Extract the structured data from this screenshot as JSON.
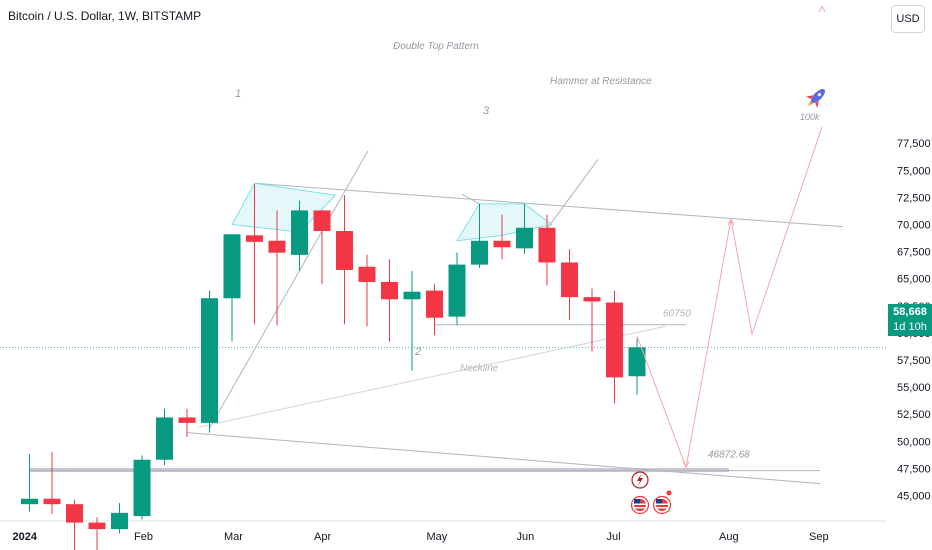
{
  "header": {
    "title": "Bitcoin / U.S. Dollar, 1W, BITSTAMP",
    "currency_button": "USD"
  },
  "price_badge": {
    "price": "58,668",
    "countdown": "1d 10h",
    "color": "#089981"
  },
  "colors": {
    "up": "#089981",
    "down": "#f23645",
    "pattern_fill": "#b2ebf2",
    "annotation_line": "#b2b5be",
    "projection": "#f7a6b0"
  },
  "annotations": {
    "pattern_title": "Double Top Pattern",
    "hammer": "Hammer at Resistance",
    "neckline": "Neckline",
    "peak1": "1",
    "trough": "2",
    "peak2": "3",
    "level_60750": "60750",
    "level_46872": "46872.68",
    "target": "100k"
  },
  "chart_data": {
    "type": "candlestick",
    "title": "Bitcoin / U.S. Dollar, 1W, BITSTAMP",
    "currency": "USD",
    "y_ticks": [
      45000,
      47500,
      50000,
      52500,
      55000,
      57500,
      60000,
      62500,
      65000,
      67500,
      70000,
      72500,
      75000,
      77500
    ],
    "y_tick_labels": [
      "45,000",
      "47,500",
      "50,000",
      "52,500",
      "55,000",
      "57,500",
      "60,000",
      "62,500",
      "65,000",
      "67,500",
      "70,000",
      "72,500",
      "75,000",
      "77,500"
    ],
    "x_labels": [
      {
        "label": "2024",
        "index": 0
      },
      {
        "label": "Feb",
        "index": 5
      },
      {
        "label": "Mar",
        "index": 9
      },
      {
        "label": "Apr",
        "index": 13
      },
      {
        "label": "May",
        "index": 18
      },
      {
        "label": "Jun",
        "index": 22
      },
      {
        "label": "Jul",
        "index": 26
      },
      {
        "label": "Aug",
        "index": 31
      },
      {
        "label": "Sep",
        "index": 35
      }
    ],
    "ylim": [
      43500,
      79500
    ],
    "last_price": 58668,
    "candles": [
      {
        "o": 44200,
        "h": 48800,
        "l": 43500,
        "c": 44700
      },
      {
        "o": 44700,
        "h": 49000,
        "l": 43300,
        "c": 44200
      },
      {
        "o": 44200,
        "h": 44600,
        "l": 38500,
        "c": 42500
      },
      {
        "o": 42500,
        "h": 43000,
        "l": 38800,
        "c": 41900
      },
      {
        "o": 41900,
        "h": 44300,
        "l": 41500,
        "c": 43400
      },
      {
        "o": 43100,
        "h": 48700,
        "l": 42800,
        "c": 48300
      },
      {
        "o": 48300,
        "h": 53000,
        "l": 47800,
        "c": 52200
      },
      {
        "o": 52200,
        "h": 53000,
        "l": 50400,
        "c": 51700
      },
      {
        "o": 51700,
        "h": 63900,
        "l": 50800,
        "c": 63200
      },
      {
        "o": 63200,
        "h": 69000,
        "l": 59200,
        "c": 69100
      },
      {
        "o": 69000,
        "h": 73700,
        "l": 60800,
        "c": 68400
      },
      {
        "o": 68500,
        "h": 71300,
        "l": 60700,
        "c": 67400
      },
      {
        "o": 67200,
        "h": 72200,
        "l": 65700,
        "c": 71300
      },
      {
        "o": 71300,
        "h": 71300,
        "l": 64500,
        "c": 69400
      },
      {
        "o": 69400,
        "h": 72700,
        "l": 60800,
        "c": 65800
      },
      {
        "o": 66100,
        "h": 67200,
        "l": 60600,
        "c": 64700
      },
      {
        "o": 64700,
        "h": 66800,
        "l": 59200,
        "c": 63100
      },
      {
        "o": 63100,
        "h": 65700,
        "l": 56500,
        "c": 63800
      },
      {
        "o": 63900,
        "h": 64500,
        "l": 59800,
        "c": 61400
      },
      {
        "o": 61500,
        "h": 67400,
        "l": 60700,
        "c": 66300
      },
      {
        "o": 66300,
        "h": 71900,
        "l": 66000,
        "c": 68500
      },
      {
        "o": 68500,
        "h": 70900,
        "l": 66800,
        "c": 67900
      },
      {
        "o": 67800,
        "h": 71900,
        "l": 67300,
        "c": 69700
      },
      {
        "o": 69700,
        "h": 70900,
        "l": 64400,
        "c": 66500
      },
      {
        "o": 66500,
        "h": 67700,
        "l": 61200,
        "c": 63300
      },
      {
        "o": 63300,
        "h": 64100,
        "l": 58300,
        "c": 62900
      },
      {
        "o": 62800,
        "h": 63900,
        "l": 53500,
        "c": 55900
      },
      {
        "o": 56000,
        "h": 59500,
        "l": 54300,
        "c": 58668
      }
    ]
  }
}
